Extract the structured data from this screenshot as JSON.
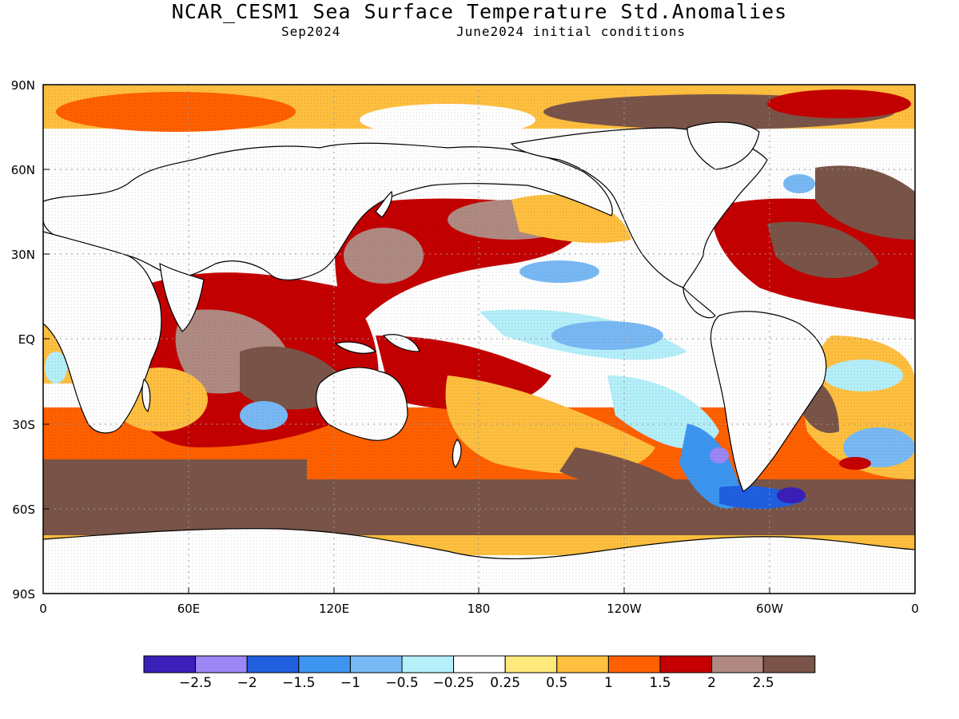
{
  "header": {
    "title": "NCAR_CESM1 Sea Surface Temperature Std.Anomalies",
    "valid_month": "Sep2024",
    "init": "June2024 initial conditions"
  },
  "map": {
    "lat_ticks": [
      "90N",
      "60N",
      "30N",
      "EQ",
      "30S",
      "60S",
      "90S"
    ],
    "lon_ticks": [
      "0",
      "60E",
      "120E",
      "180",
      "120W",
      "60W",
      "0"
    ]
  },
  "legend": {
    "colors": [
      "#3a1fb8",
      "#9b87f5",
      "#1f5fe0",
      "#3c96f0",
      "#78b9f5",
      "#b4effa",
      "#ffffff",
      "#ffe87c",
      "#ffbf3f",
      "#ff6000",
      "#c40000",
      "#b08a82",
      "#7a5448"
    ],
    "labels": [
      "-2.5",
      "-2",
      "-1.5",
      "-1",
      "-0.5",
      "-0.25",
      "0.25",
      "0.5",
      "1",
      "1.5",
      "2",
      "2.5"
    ]
  }
}
